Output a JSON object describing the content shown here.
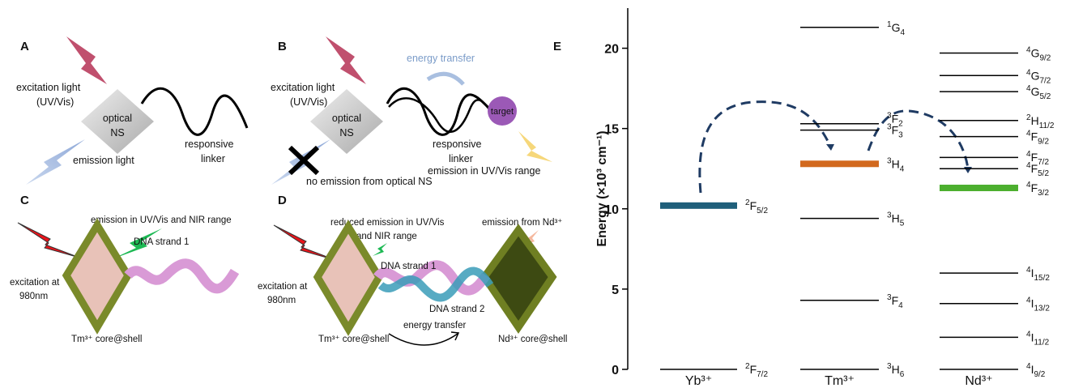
{
  "panels": {
    "A": {
      "label": "A",
      "excitation": [
        "excitation light",
        "(UV/Vis)"
      ],
      "ns": [
        "optical",
        "NS"
      ],
      "linker": [
        "responsive",
        "linker"
      ],
      "emission": "emission light"
    },
    "B": {
      "label": "B",
      "energy_transfer": "energy transfer",
      "excitation": [
        "excitation light",
        "(UV/Vis)"
      ],
      "ns": [
        "optical",
        "NS"
      ],
      "target": "target",
      "linker": [
        "responsive",
        "linker"
      ],
      "no_emission": "no emission from optical NS",
      "emission": "emission in UV/Vis range"
    },
    "C": {
      "label": "C",
      "emission": "emission in UV/Vis and NIR range",
      "strand": "DNA strand 1",
      "excitation": [
        "excitation at",
        "980nm"
      ],
      "core": "Tm³⁺ core@shell"
    },
    "D": {
      "label": "D",
      "reduced": [
        "reduced emission in UV/Vis",
        "and NIR range"
      ],
      "nd_emission": "emission from Nd³⁺",
      "strand1": "DNA strand 1",
      "excitation": [
        "excitation at",
        "980nm"
      ],
      "strand2": "DNA strand 2",
      "energy_transfer": "energy transfer",
      "tm_core": "Tm³⁺ core@shell",
      "nd_core": "Nd³⁺ core@shell"
    }
  },
  "chart_data": {
    "type": "energy_levels",
    "panel_label": "E",
    "ylabel": "Energy (×10³ cm⁻¹)",
    "ylim": [
      0,
      22.5
    ],
    "yticks": [
      0,
      5,
      10,
      15,
      20
    ],
    "groups": [
      {
        "name": "Yb³⁺",
        "levels": [
          {
            "sup": "2",
            "term": "F",
            "sub": "7/2",
            "value": 0
          },
          {
            "sup": "2",
            "term": "F",
            "sub": "5/2",
            "value": 10.2,
            "color": "#1f5f7a"
          }
        ]
      },
      {
        "name": "Tm³⁺",
        "levels": [
          {
            "sup": "3",
            "term": "H",
            "sub": "6",
            "value": 0
          },
          {
            "sup": "3",
            "term": "F",
            "sub": "4",
            "value": 4.3
          },
          {
            "sup": "3",
            "term": "H",
            "sub": "5",
            "value": 9.4
          },
          {
            "sup": "3",
            "term": "H",
            "sub": "4",
            "value": 12.8,
            "color": "#d2691e"
          },
          {
            "sup": "3",
            "term": "F",
            "sub": "3",
            "value": 14.9
          },
          {
            "sup": "3",
            "term": "F",
            "sub": "2",
            "value": 15.3
          },
          {
            "sup": "1",
            "term": "G",
            "sub": "4",
            "value": 21.3
          }
        ]
      },
      {
        "name": "Nd³⁺",
        "levels": [
          {
            "sup": "4",
            "term": "I",
            "sub": "9/2",
            "value": 0
          },
          {
            "sup": "4",
            "term": "I",
            "sub": "11/2",
            "value": 2.0
          },
          {
            "sup": "4",
            "term": "I",
            "sub": "13/2",
            "value": 4.1
          },
          {
            "sup": "4",
            "term": "I",
            "sub": "15/2",
            "value": 6.0
          },
          {
            "sup": "4",
            "term": "F",
            "sub": "3/2",
            "value": 11.3,
            "color": "#4caf2e"
          },
          {
            "sup": "4",
            "term": "F",
            "sub": "5/2",
            "value": 12.5
          },
          {
            "sup": "4",
            "term": "F",
            "sub": "7/2",
            "value": 13.2
          },
          {
            "sup": "4",
            "term": "F",
            "sub": "9/2",
            "value": 14.5
          },
          {
            "sup": "2",
            "term": "H",
            "sub": "11/2",
            "value": 15.5
          },
          {
            "sup": "4",
            "term": "G",
            "sub": "5/2",
            "value": 17.3
          },
          {
            "sup": "4",
            "term": "G",
            "sub": "7/2",
            "value": 18.3
          },
          {
            "sup": "4",
            "term": "G",
            "sub": "9/2",
            "value": 19.7
          }
        ]
      }
    ]
  }
}
